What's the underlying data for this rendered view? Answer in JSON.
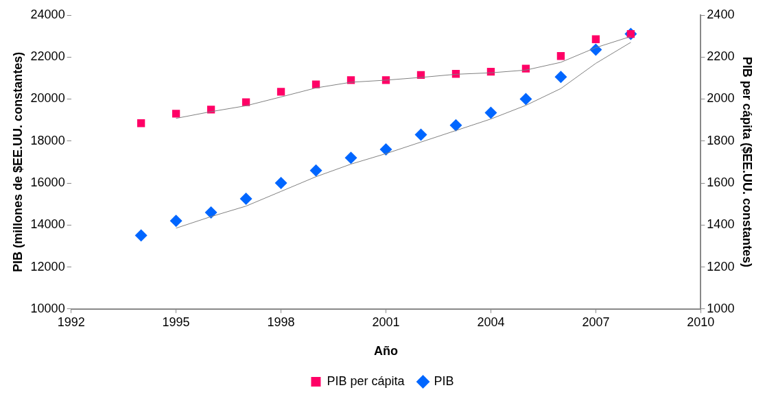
{
  "chart_data": {
    "type": "scatter",
    "xlabel": "Año",
    "ylabel": "PIB (millones de $EE.UU. constantes)",
    "y2label": "PIB per cápita ($EE.UU. constantes)",
    "x": [
      1994,
      1995,
      1996,
      1997,
      1998,
      1999,
      2000,
      2001,
      2002,
      2003,
      2004,
      2005,
      2006,
      2007,
      2008
    ],
    "series": [
      {
        "name": "PIB",
        "color": "#0066ff",
        "marker": "diamond",
        "values": [
          13500,
          14200,
          14600,
          15250,
          16000,
          16600,
          17200,
          17600,
          18300,
          18750,
          19350,
          20000,
          21050,
          22350,
          23100
        ]
      },
      {
        "name": "PIB per cápita",
        "color": "#ff0066",
        "marker": "square",
        "axis": "y2",
        "values": [
          1885,
          1930,
          1950,
          1985,
          2035,
          2070,
          2090,
          2090,
          2115,
          2120,
          2130,
          2145,
          2205,
          2285,
          2310
        ]
      },
      {
        "type": "line",
        "color": "#808080",
        "marker": "none",
        "x": [
          1995,
          1996,
          1997,
          1998,
          1999,
          2000,
          2001,
          2002,
          2003,
          2004,
          2005,
          2006,
          2007,
          2008
        ],
        "values": [
          13850,
          14400,
          14900,
          15600,
          16300,
          16900,
          17400,
          17950,
          18500,
          19050,
          19700,
          20500,
          21700,
          22700
        ]
      },
      {
        "type": "line",
        "color": "#808080",
        "marker": "none",
        "axis": "y2",
        "x": [
          1995,
          1996,
          1997,
          1998,
          1999,
          2000,
          2001,
          2002,
          2003,
          2004,
          2005,
          2006,
          2007,
          2008
        ],
        "values": [
          1908,
          1940,
          1968,
          2010,
          2053,
          2080,
          2090,
          2103,
          2118,
          2125,
          2138,
          2175,
          2245,
          2298
        ]
      }
    ],
    "xlim": [
      1992,
      2010
    ],
    "xticks": [
      1992,
      1995,
      1998,
      2001,
      2004,
      2007,
      2010
    ],
    "ylim": [
      10000,
      24000
    ],
    "yticks": [
      10000,
      12000,
      14000,
      16000,
      18000,
      20000,
      22000,
      24000
    ],
    "y2lim": [
      1000,
      2400
    ],
    "y2ticks": [
      1000,
      1200,
      1400,
      1600,
      1800,
      2000,
      2200,
      2400
    ],
    "legend": "bottom"
  }
}
